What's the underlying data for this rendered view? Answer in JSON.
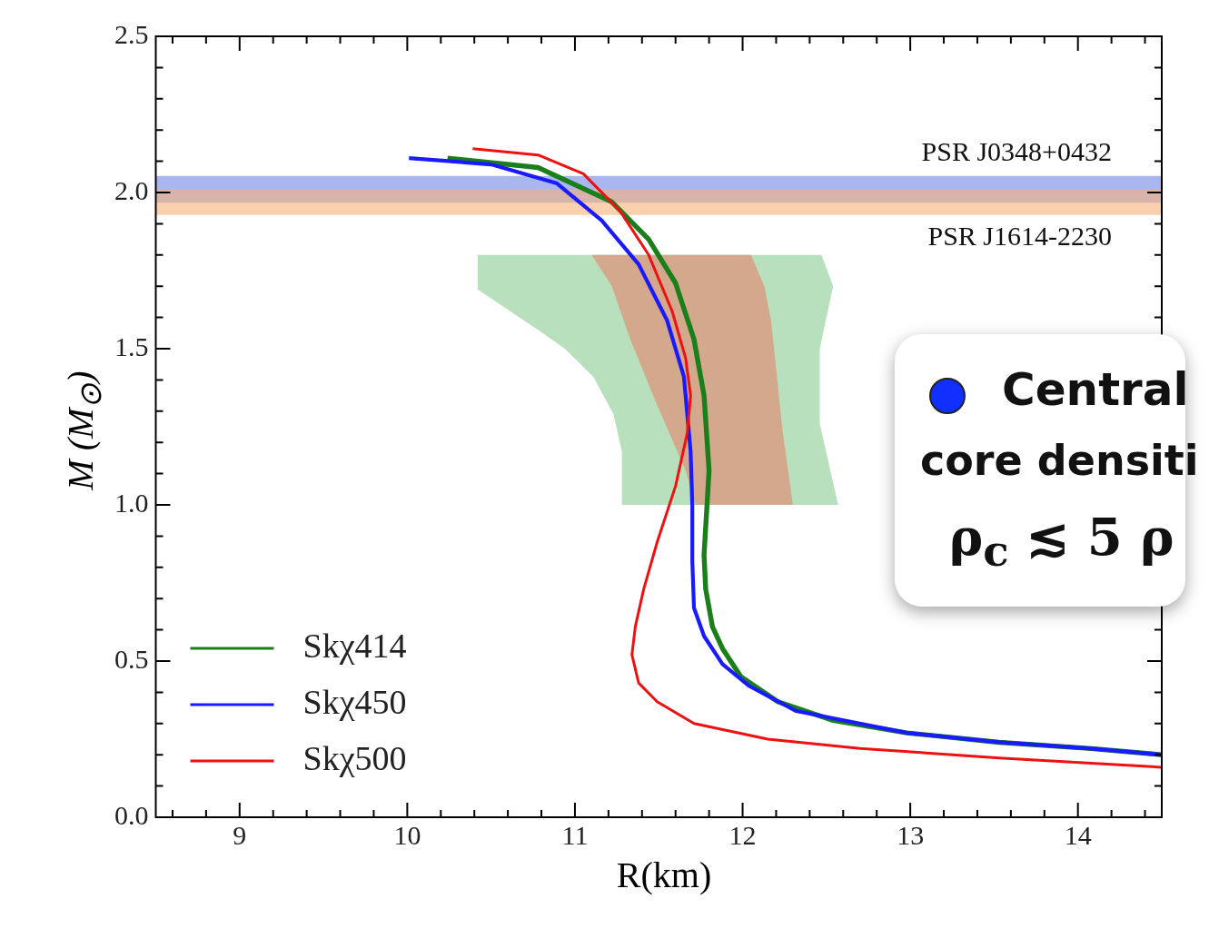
{
  "chart_data": {
    "type": "line",
    "xlabel": "R(km)",
    "ylabel": "M (M$_{⊙}$)",
    "xlim": [
      8.5,
      14.5
    ],
    "xticks": [
      9,
      10,
      11,
      12,
      13,
      14
    ],
    "ylim": [
      0,
      2.5
    ],
    "yticks": [
      {
        "value": 0,
        "label": "0.0"
      },
      0.5,
      {
        "value": 1,
        "label": "1.0"
      },
      1.5,
      {
        "value": 2,
        "label": "2.0"
      },
      2.5
    ],
    "grid": false,
    "legend": "bottom left",
    "line_style": "solid",
    "marker": "none",
    "bands": [
      {
        "axis": "y",
        "from": 1.967,
        "to": 2.053,
        "label": "PSR J0348+0432",
        "color": "#6f86e6"
      },
      {
        "axis": "y",
        "from": 1.928,
        "to": 2.011,
        "label": "PSR J1614-2230",
        "color": "#f9b07a"
      }
    ],
    "series": [
      {
        "type": "area",
        "color": "#b9e0bd",
        "x": [
          10.42,
          12.47,
          12.54,
          12.46,
          12.46,
          12.57,
          11.28,
          11.28,
          11.23,
          11.11,
          10.94,
          10.78,
          10.42,
          10.42
        ],
        "values": [
          1.8,
          1.8,
          1.7,
          1.5,
          1.26,
          1.0,
          1.0,
          1.17,
          1.29,
          1.41,
          1.5,
          1.56,
          1.69,
          1.8
        ]
      },
      {
        "type": "area",
        "color": "#d4a88d",
        "x": [
          11.1,
          12.05,
          12.13,
          12.17,
          12.24,
          12.3,
          11.72,
          11.66,
          11.49,
          11.33,
          11.22,
          11.1
        ],
        "values": [
          1.8,
          1.8,
          1.7,
          1.59,
          1.23,
          1.0,
          1.0,
          1.11,
          1.32,
          1.53,
          1.7,
          1.8
        ]
      },
      {
        "name": "Skχ414",
        "color": "#1a7f1a",
        "x": [
          10.24,
          10.78,
          11.22,
          11.44,
          11.6,
          11.71,
          11.77,
          11.8,
          11.77,
          11.78,
          11.82,
          11.88,
          11.99,
          12.21,
          12.54,
          12.98,
          13.53,
          14.08,
          14.5
        ],
        "values": [
          2.11,
          2.08,
          1.97,
          1.85,
          1.71,
          1.53,
          1.35,
          1.11,
          0.84,
          0.73,
          0.61,
          0.54,
          0.45,
          0.37,
          0.31,
          0.27,
          0.24,
          0.22,
          0.2
        ]
      },
      {
        "name": "Skχ450",
        "color": "#1a1aff",
        "x": [
          10.01,
          10.5,
          10.89,
          11.16,
          11.38,
          11.55,
          11.65,
          11.69,
          11.7,
          11.7,
          11.71,
          11.77,
          11.88,
          12.04,
          12.32,
          12.98,
          13.53,
          14.08,
          14.5
        ],
        "values": [
          2.11,
          2.09,
          2.03,
          1.91,
          1.77,
          1.59,
          1.41,
          1.17,
          1.0,
          0.82,
          0.67,
          0.58,
          0.49,
          0.42,
          0.34,
          0.27,
          0.24,
          0.22,
          0.2
        ]
      },
      {
        "name": "Skχ500",
        "color": "#ee1111",
        "x": [
          10.39,
          10.78,
          11.05,
          11.27,
          11.44,
          11.58,
          11.66,
          11.69,
          11.67,
          11.6,
          11.49,
          11.41,
          11.36,
          11.34,
          11.38,
          11.49,
          11.71,
          12.15,
          12.7,
          13.53,
          14.5
        ],
        "values": [
          2.14,
          2.12,
          2.06,
          1.94,
          1.8,
          1.62,
          1.47,
          1.35,
          1.23,
          1.06,
          0.88,
          0.73,
          0.61,
          0.52,
          0.43,
          0.37,
          0.3,
          0.25,
          0.22,
          0.19,
          0.16
        ]
      }
    ],
    "annotations": [
      "Central",
      "core densiti",
      "ρ$_{c}$ ≲ 5 ρ"
    ]
  }
}
